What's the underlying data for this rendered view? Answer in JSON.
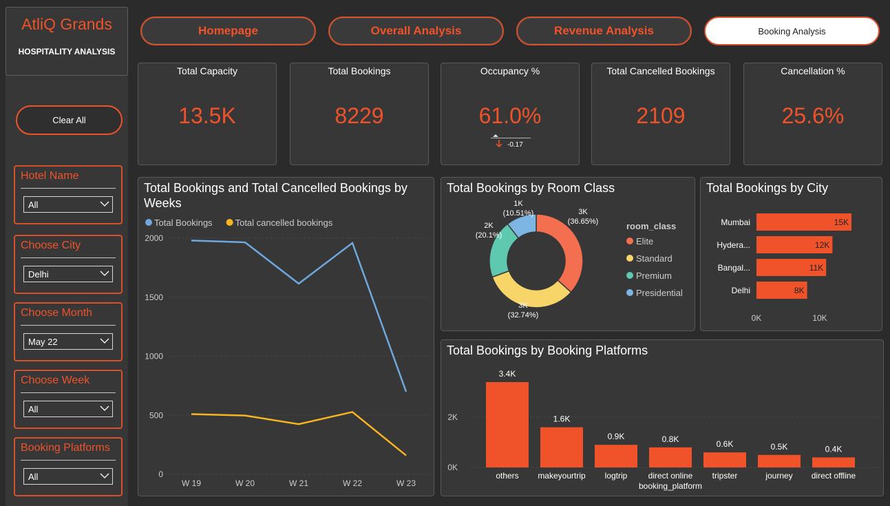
{
  "brand": {
    "title": "AtliQ Grands",
    "subtitle": "HOSPITALITY ANALYSIS"
  },
  "sidebar": {
    "clear_all": "Clear All",
    "slicers": [
      {
        "title": "Hotel Name",
        "value": "All"
      },
      {
        "title": "Choose City",
        "value": "Delhi"
      },
      {
        "title": "Choose Month",
        "value": "May 22"
      },
      {
        "title": "Choose Week",
        "value": "All"
      },
      {
        "title": "Booking Platforms",
        "value": "All"
      }
    ]
  },
  "nav": {
    "homepage": "Homepage",
    "overall": "Overall Analysis",
    "revenue": "Revenue Analysis",
    "booking": "Booking Analysis",
    "active": "booking"
  },
  "kpis": {
    "capacity": {
      "label": "Total Capacity",
      "value": "13.5K"
    },
    "bookings": {
      "label": "Total Bookings",
      "value": "8229"
    },
    "occupancy": {
      "label": "Occupancy %",
      "value": "61.0%",
      "delta": "-0.17"
    },
    "cancelled": {
      "label": "Total Cancelled Bookings",
      "value": "2109"
    },
    "cancel_pct": {
      "label": "Cancellation %",
      "value": "25.6%"
    }
  },
  "colors": {
    "accent": "#f0532a",
    "blue": "#6fa8dc",
    "yellow": "#f7b521",
    "elite": "#f36f50",
    "standard": "#f8d568",
    "premium": "#5ec9ae",
    "presidential": "#7eb6e3"
  },
  "chart_data": [
    {
      "id": "weekly",
      "type": "line",
      "title": "Total Bookings and Total Cancelled Bookings by Weeks",
      "x": [
        "W 19",
        "W 20",
        "W 21",
        "W 22",
        "W 23"
      ],
      "ylim": [
        0,
        2000
      ],
      "yticks": [
        0,
        500,
        1000,
        1500,
        2000
      ],
      "series": [
        {
          "name": "Total Bookings",
          "values": [
            1980,
            1965,
            1615,
            1960,
            700
          ]
        },
        {
          "name": "Total cancelled bookings",
          "values": [
            510,
            498,
            425,
            528,
            160
          ]
        }
      ]
    },
    {
      "id": "room_class",
      "type": "pie",
      "title": "Total Bookings by Room Class",
      "legend_title": "room_class",
      "categories": [
        "Elite",
        "Standard",
        "Premium",
        "Presidential"
      ],
      "values": [
        36.65,
        32.74,
        20.1,
        10.51
      ],
      "labels": [
        {
          "value": "3K",
          "pct": "(36.65%)"
        },
        {
          "value": "3K",
          "pct": "(32.74%)"
        },
        {
          "value": "2K",
          "pct": "(20.1%)"
        },
        {
          "value": "1K",
          "pct": "(10.51%)"
        }
      ]
    },
    {
      "id": "city",
      "type": "bar",
      "title": "Total Bookings by City",
      "categories": [
        "Mumbai",
        "Hydera...",
        "Bangal...",
        "Delhi"
      ],
      "values": [
        15000,
        12000,
        11000,
        8000
      ],
      "labels": [
        "15K",
        "12K",
        "11K",
        "8K"
      ],
      "xticks": [
        "0K",
        "10K"
      ],
      "xlim": [
        0,
        15000
      ]
    },
    {
      "id": "platforms",
      "type": "bar",
      "title": "Total Bookings by Booking Platforms",
      "categories": [
        "others",
        "makeyourtrip",
        "logtrip",
        "direct online",
        "tripster",
        "journey",
        "direct offline"
      ],
      "values": [
        3400,
        1600,
        900,
        800,
        600,
        500,
        400
      ],
      "labels": [
        "3.4K",
        "1.6K",
        "0.9K",
        "0.8K",
        "0.6K",
        "0.5K",
        "0.4K"
      ],
      "yticks": [
        "0K",
        "2K"
      ],
      "xlabel": "booking_platform",
      "ylim": [
        0,
        3400
      ]
    }
  ]
}
